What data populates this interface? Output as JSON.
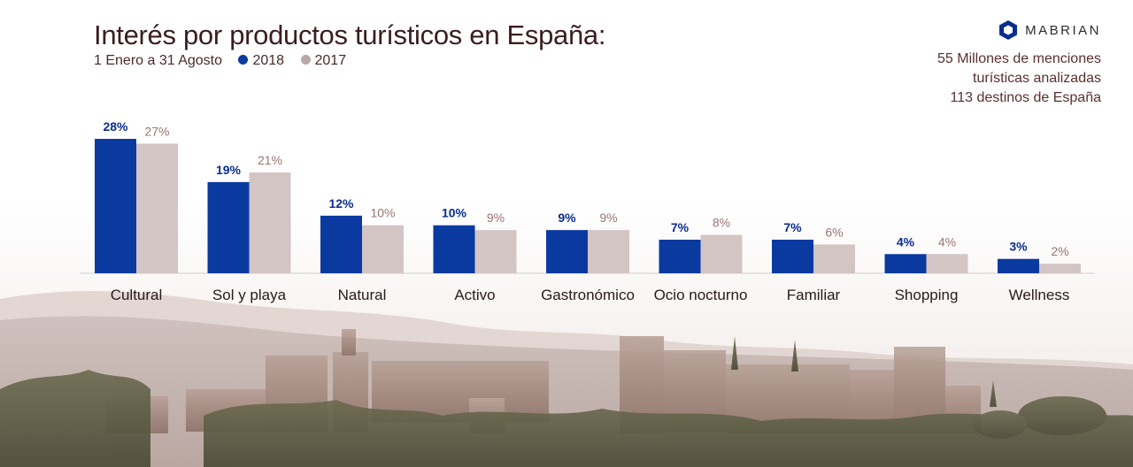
{
  "header": {
    "title": "Interés por productos turísticos en España:",
    "date_range": "1 Enero a 31 Agosto"
  },
  "brand": {
    "name": "MABRIAN",
    "logo_color": "#0a2d8f"
  },
  "stats": [
    "55 Millones de menciones",
    "turísticas analizadas",
    "113 destinos de España"
  ],
  "colors": {
    "series_2018": "#0a3aa0",
    "series_2017": "#d3c5c4",
    "label_2018": "#0a2d8f",
    "label_2017": "#9b7475",
    "category_text": "#2a1a1b"
  },
  "chart_data": {
    "type": "bar",
    "title": "Interés por productos turísticos en España:",
    "xlabel": "",
    "ylabel": "",
    "ylim": [
      0,
      30
    ],
    "grid": false,
    "legend_placement": "top-left",
    "categories": [
      "Cultural",
      "Sol y playa",
      "Natural",
      "Activo",
      "Gastronómico",
      "Ocio nocturno",
      "Familiar",
      "Shopping",
      "Wellness"
    ],
    "series": [
      {
        "name": "2018",
        "values": [
          28,
          19,
          12,
          10,
          9,
          7,
          7,
          4,
          3
        ],
        "labels": [
          "28%",
          "19%",
          "12%",
          "10%",
          "9%",
          "7%",
          "7%",
          "4%",
          "3%"
        ]
      },
      {
        "name": "2017",
        "values": [
          27,
          21,
          10,
          9,
          9,
          8,
          6,
          4,
          2
        ],
        "labels": [
          "27%",
          "21%",
          "10%",
          "9%",
          "9%",
          "8%",
          "6%",
          "4%",
          "2%"
        ]
      }
    ]
  }
}
